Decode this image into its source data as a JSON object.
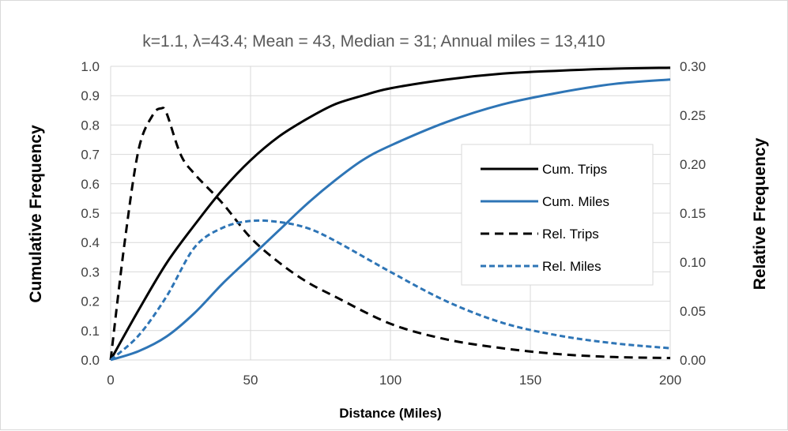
{
  "chart_data": {
    "type": "line",
    "title": "k=1.1, λ=43.4; Mean = 43, Median = 31; Annual miles = 13,410",
    "xlabel": "Distance (Miles)",
    "ylabel_left": "Cumulative Frequency",
    "ylabel_right": "Relative Frequency",
    "xlim": [
      0,
      200
    ],
    "ylim_left": [
      0,
      1.0
    ],
    "ylim_right": [
      0,
      0.3
    ],
    "x_ticks": [
      "0",
      "50",
      "100",
      "150",
      "200"
    ],
    "y_left_ticks": [
      "0.0",
      "0.1",
      "0.2",
      "0.3",
      "0.4",
      "0.5",
      "0.6",
      "0.7",
      "0.8",
      "0.9",
      "1.0"
    ],
    "y_right_ticks": [
      "0.00",
      "0.05",
      "0.10",
      "0.15",
      "0.20",
      "0.25",
      "0.30"
    ],
    "grid": true,
    "legend_position": "right",
    "series": [
      {
        "name": "Cum. Trips",
        "axis": "left",
        "color": "#000000",
        "dash": "solid",
        "x": [
          0,
          10,
          20,
          30,
          40,
          50,
          60,
          70,
          80,
          90,
          100,
          120,
          140,
          160,
          180,
          200
        ],
        "y": [
          0.0,
          0.17,
          0.33,
          0.46,
          0.58,
          0.68,
          0.76,
          0.82,
          0.87,
          0.9,
          0.925,
          0.955,
          0.975,
          0.985,
          0.992,
          0.995
        ]
      },
      {
        "name": "Cum. Miles",
        "axis": "left",
        "color": "#2e75b6",
        "dash": "solid",
        "x": [
          0,
          10,
          20,
          30,
          40,
          50,
          60,
          70,
          80,
          90,
          100,
          120,
          140,
          160,
          180,
          200
        ],
        "y": [
          0.0,
          0.03,
          0.08,
          0.16,
          0.26,
          0.35,
          0.44,
          0.53,
          0.61,
          0.68,
          0.73,
          0.81,
          0.87,
          0.91,
          0.94,
          0.955
        ]
      },
      {
        "name": "Rel. Trips",
        "axis": "right",
        "color": "#000000",
        "dash": "dashed",
        "x": [
          0,
          5,
          10,
          15,
          18,
          20,
          25,
          30,
          40,
          50,
          60,
          70,
          80,
          100,
          120,
          140,
          160,
          180,
          200
        ],
        "y": [
          0.0,
          0.12,
          0.215,
          0.25,
          0.257,
          0.252,
          0.21,
          0.19,
          0.16,
          0.125,
          0.1,
          0.08,
          0.065,
          0.037,
          0.021,
          0.012,
          0.006,
          0.003,
          0.002
        ]
      },
      {
        "name": "Rel. Miles",
        "axis": "right",
        "color": "#2e75b6",
        "dash": "dashed",
        "x": [
          0,
          10,
          20,
          30,
          40,
          50,
          60,
          70,
          80,
          100,
          120,
          140,
          160,
          180,
          200
        ],
        "y": [
          0.0,
          0.025,
          0.065,
          0.115,
          0.135,
          0.142,
          0.141,
          0.135,
          0.122,
          0.09,
          0.06,
          0.038,
          0.025,
          0.017,
          0.012
        ]
      }
    ]
  }
}
